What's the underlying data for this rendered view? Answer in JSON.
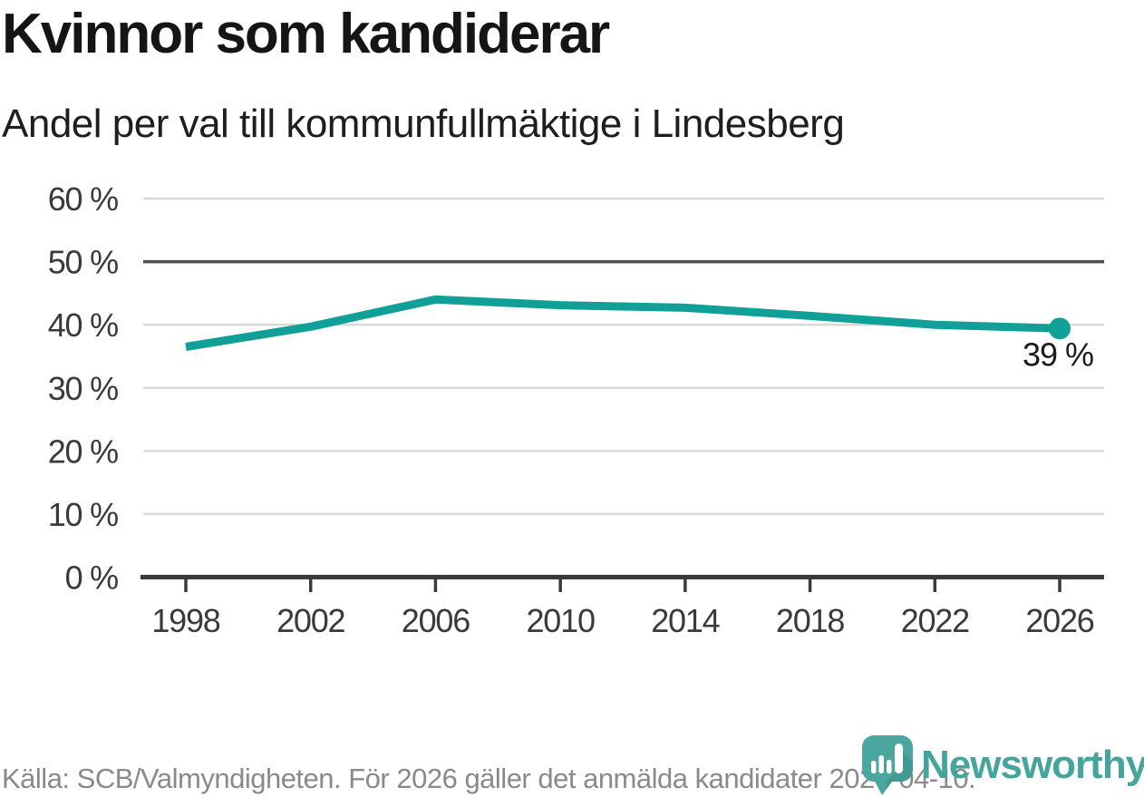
{
  "chart_data": {
    "type": "line",
    "title": "Kvinnor som kandiderar",
    "subtitle": "Andel per val till kommunfullmäktige i Lindesberg",
    "x": [
      1998,
      2002,
      2006,
      2010,
      2014,
      2018,
      2022,
      2026
    ],
    "x_tick_labels": [
      "1998",
      "2002",
      "2006",
      "2010",
      "2014",
      "2018",
      "2022",
      "2026"
    ],
    "series": [
      {
        "color": "#11A097",
        "values": [
          36.5,
          39.7,
          44,
          43.1,
          42.7,
          41.4,
          40,
          39.4
        ]
      }
    ],
    "end_label": "39 %",
    "end_label_value": "39",
    "unit": "%",
    "ylim": [
      0,
      60
    ],
    "yticks": [
      0,
      10,
      20,
      30,
      40,
      50,
      60
    ],
    "ytick_labels": [
      "0 %",
      "10 %",
      "20 %",
      "30 %",
      "40 %",
      "50 %",
      "60 %"
    ],
    "reference_line": 50,
    "grid": "horizontal",
    "legend": "none"
  },
  "footer": {
    "source": "Källa: SCB/Valmyndigheten. För 2026 gäller det anmälda kandidater 2026-04-10.",
    "brand": "Newsworthy"
  },
  "colors": {
    "line": "#11A097",
    "brand_teal": "#45A49C",
    "brand_teal_dark": "#3D8C86",
    "grid": "#D9D9D9",
    "reference_line": "#4F4F4F",
    "axis": "#3A3A3A",
    "title_text": "#151515",
    "source_text": "#8A8A8A"
  }
}
